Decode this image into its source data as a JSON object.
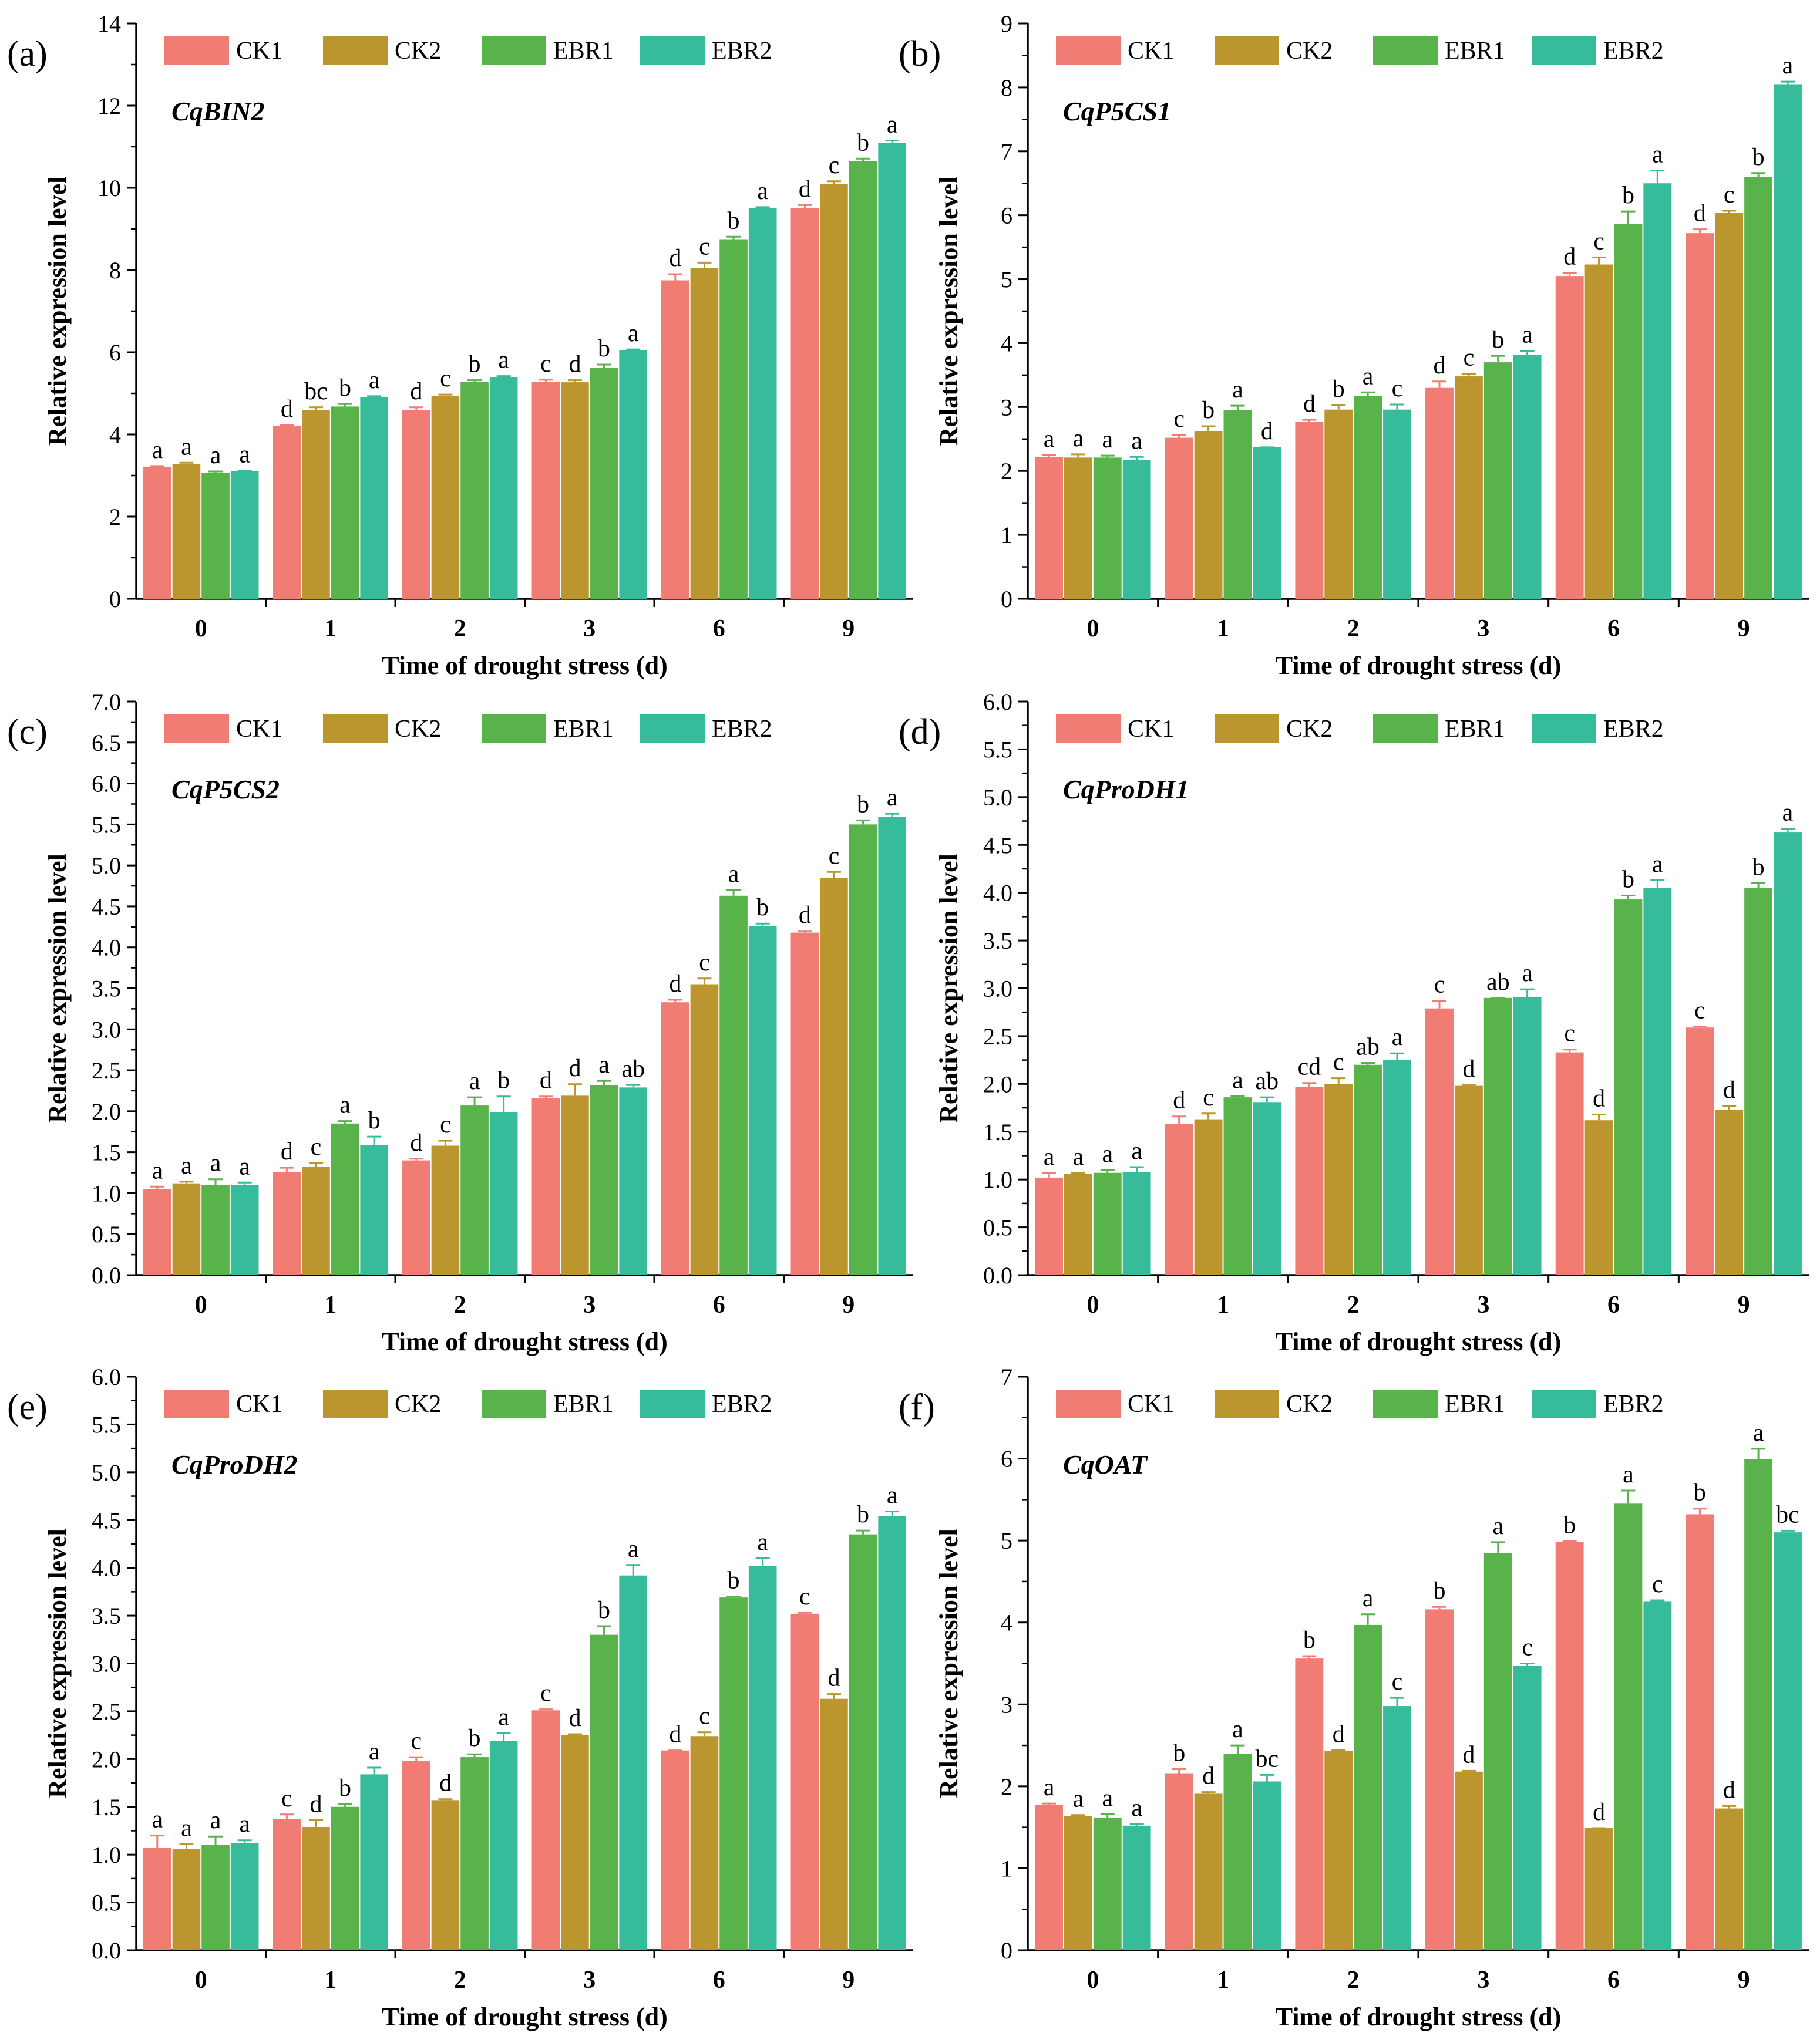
{
  "series_names": [
    "CK1",
    "CK2",
    "EBR1",
    "EBR2"
  ],
  "series_colors": [
    "#F07C74",
    "#BB962E",
    "#58B34A",
    "#36BB9B"
  ],
  "categories": [
    "0",
    "1",
    "2",
    "3",
    "6",
    "9"
  ],
  "xlabel": "Time of drought stress (d)",
  "ylabel": "Relative expression level",
  "chart_data": [
    {
      "type": "bar",
      "panel_label": "(a)",
      "gene": "CqBIN2",
      "ylim": [
        0,
        14
      ],
      "yticks": [
        "0",
        "2",
        "4",
        "6",
        "8",
        "10",
        "12",
        "14"
      ],
      "minor_step": 1,
      "series": [
        {
          "name": "CK1",
          "values": [
            3.2,
            4.2,
            4.6,
            5.28,
            7.75,
            9.5
          ],
          "errors": [
            0.03,
            0.03,
            0.06,
            0.05,
            0.15,
            0.08
          ],
          "letters": [
            "a",
            "d",
            "d",
            "c",
            "d",
            "d"
          ]
        },
        {
          "name": "CK2",
          "values": [
            3.28,
            4.6,
            4.93,
            5.27,
            8.05,
            10.1
          ],
          "errors": [
            0.03,
            0.06,
            0.04,
            0.05,
            0.13,
            0.06
          ],
          "letters": [
            "a",
            "bc",
            "c",
            "d",
            "c",
            "c"
          ]
        },
        {
          "name": "EBR1",
          "values": [
            3.07,
            4.68,
            5.28,
            5.62,
            8.75,
            10.65
          ],
          "errors": [
            0.03,
            0.06,
            0.04,
            0.08,
            0.06,
            0.06
          ],
          "letters": [
            "a",
            "b",
            "b",
            "b",
            "b",
            "b"
          ]
        },
        {
          "name": "EBR2",
          "values": [
            3.1,
            4.9,
            5.4,
            6.05,
            9.5,
            11.1
          ],
          "errors": [
            0.02,
            0.03,
            0.02,
            0.02,
            0.03,
            0.05
          ],
          "letters": [
            "a",
            "a",
            "a",
            "a",
            "a",
            "a"
          ]
        }
      ]
    },
    {
      "type": "bar",
      "panel_label": "(b)",
      "gene": "CqP5CS1",
      "ylim": [
        0,
        9
      ],
      "yticks": [
        "0",
        "1",
        "2",
        "3",
        "4",
        "5",
        "6",
        "7",
        "8",
        "9"
      ],
      "minor_step": 0.5,
      "series": [
        {
          "name": "CK1",
          "values": [
            2.22,
            2.52,
            2.77,
            3.3,
            5.05,
            5.72
          ],
          "errors": [
            0.03,
            0.04,
            0.03,
            0.1,
            0.05,
            0.06
          ],
          "letters": [
            "a",
            "c",
            "d",
            "d",
            "d",
            "d"
          ]
        },
        {
          "name": "CK2",
          "values": [
            2.21,
            2.62,
            2.96,
            3.48,
            5.23,
            6.04
          ],
          "errors": [
            0.05,
            0.08,
            0.07,
            0.04,
            0.11,
            0.03
          ],
          "letters": [
            "a",
            "b",
            "b",
            "c",
            "c",
            "c"
          ]
        },
        {
          "name": "EBR1",
          "values": [
            2.21,
            2.95,
            3.17,
            3.7,
            5.86,
            6.6
          ],
          "errors": [
            0.03,
            0.07,
            0.06,
            0.1,
            0.2,
            0.06
          ],
          "letters": [
            "a",
            "a",
            "a",
            "b",
            "b",
            "b"
          ]
        },
        {
          "name": "EBR2",
          "values": [
            2.17,
            2.37,
            2.96,
            3.82,
            6.5,
            8.05
          ],
          "errors": [
            0.05,
            0.0,
            0.08,
            0.06,
            0.2,
            0.04
          ],
          "letters": [
            "a",
            "d",
            "c",
            "a",
            "a",
            "a"
          ]
        }
      ]
    },
    {
      "type": "bar",
      "panel_label": "(c)",
      "gene": "CqP5CS2",
      "ylim": [
        0,
        7
      ],
      "yticks": [
        "0.0",
        "0.5",
        "1.0",
        "1.5",
        "2.0",
        "2.5",
        "3.0",
        "3.5",
        "4.0",
        "4.5",
        "5.0",
        "5.5",
        "6.0",
        "6.5",
        "7.0"
      ],
      "minor_step": 0.25,
      "series": [
        {
          "name": "CK1",
          "values": [
            1.05,
            1.26,
            1.4,
            2.16,
            3.33,
            4.18
          ],
          "errors": [
            0.03,
            0.05,
            0.02,
            0.02,
            0.03,
            0.02
          ],
          "letters": [
            "a",
            "d",
            "d",
            "d",
            "d",
            "d"
          ]
        },
        {
          "name": "CK2",
          "values": [
            1.12,
            1.32,
            1.58,
            2.19,
            3.55,
            4.85
          ],
          "errors": [
            0.02,
            0.05,
            0.06,
            0.14,
            0.07,
            0.07
          ],
          "letters": [
            "a",
            "c",
            "c",
            "d",
            "c",
            "c"
          ]
        },
        {
          "name": "EBR1",
          "values": [
            1.1,
            1.85,
            2.07,
            2.32,
            4.63,
            5.5
          ],
          "errors": [
            0.07,
            0.03,
            0.1,
            0.05,
            0.07,
            0.05
          ],
          "letters": [
            "a",
            "a",
            "a",
            "a",
            "a",
            "b"
          ]
        },
        {
          "name": "EBR2",
          "values": [
            1.1,
            1.59,
            1.99,
            2.29,
            4.26,
            5.59
          ],
          "errors": [
            0.03,
            0.1,
            0.19,
            0.03,
            0.03,
            0.04
          ],
          "letters": [
            "a",
            "b",
            "b",
            "ab",
            "b",
            "a"
          ]
        }
      ]
    },
    {
      "type": "bar",
      "panel_label": "(d)",
      "gene": "CqProDH1",
      "ylim": [
        0,
        6
      ],
      "yticks": [
        "0.0",
        "0.5",
        "1.0",
        "1.5",
        "2.0",
        "2.5",
        "3.0",
        "3.5",
        "4.0",
        "4.5",
        "5.0",
        "5.5",
        "6.0"
      ],
      "minor_step": 0.25,
      "series": [
        {
          "name": "CK1",
          "values": [
            1.02,
            1.58,
            1.97,
            2.79,
            2.33,
            2.59
          ],
          "errors": [
            0.05,
            0.08,
            0.04,
            0.08,
            0.03,
            0.01
          ],
          "letters": [
            "a",
            "d",
            "cd",
            "c",
            "c",
            "c"
          ]
        },
        {
          "name": "CK2",
          "values": [
            1.06,
            1.63,
            2.0,
            1.98,
            1.62,
            1.73
          ],
          "errors": [
            0.01,
            0.06,
            0.06,
            0.01,
            0.06,
            0.04
          ],
          "letters": [
            "a",
            "c",
            "c",
            "d",
            "d",
            "d"
          ]
        },
        {
          "name": "EBR1",
          "values": [
            1.07,
            1.86,
            2.2,
            2.9,
            3.93,
            4.05
          ],
          "errors": [
            0.03,
            0.01,
            0.02,
            0.0,
            0.04,
            0.05
          ],
          "letters": [
            "a",
            "a",
            "ab",
            "ab",
            "b",
            "b"
          ]
        },
        {
          "name": "EBR2",
          "values": [
            1.08,
            1.81,
            2.25,
            2.91,
            4.05,
            4.63
          ],
          "errors": [
            0.05,
            0.05,
            0.07,
            0.08,
            0.08,
            0.04
          ],
          "letters": [
            "a",
            "ab",
            "a",
            "a",
            "a",
            "a"
          ]
        }
      ]
    },
    {
      "type": "bar",
      "panel_label": "(e)",
      "gene": "CqProDH2",
      "ylim": [
        0,
        6
      ],
      "yticks": [
        "0.0",
        "0.5",
        "1.0",
        "1.5",
        "2.0",
        "2.5",
        "3.0",
        "3.5",
        "4.0",
        "4.5",
        "5.0",
        "5.5",
        "6.0"
      ],
      "minor_step": 0.25,
      "series": [
        {
          "name": "CK1",
          "values": [
            1.07,
            1.37,
            1.98,
            2.51,
            2.09,
            3.52
          ],
          "errors": [
            0.13,
            0.05,
            0.04,
            0.01,
            0.0,
            0.01
          ],
          "letters": [
            "a",
            "c",
            "c",
            "c",
            "d",
            "c"
          ]
        },
        {
          "name": "CK2",
          "values": [
            1.06,
            1.29,
            1.57,
            2.25,
            2.24,
            2.63
          ],
          "errors": [
            0.05,
            0.07,
            0.01,
            0.01,
            0.04,
            0.05
          ],
          "letters": [
            "a",
            "d",
            "d",
            "d",
            "c",
            "d"
          ]
        },
        {
          "name": "EBR1",
          "values": [
            1.1,
            1.5,
            2.02,
            3.3,
            3.69,
            4.35
          ],
          "errors": [
            0.09,
            0.03,
            0.03,
            0.09,
            0.01,
            0.04
          ],
          "letters": [
            "a",
            "b",
            "b",
            "b",
            "b",
            "b"
          ]
        },
        {
          "name": "EBR2",
          "values": [
            1.12,
            1.84,
            2.19,
            3.92,
            4.02,
            4.54
          ],
          "errors": [
            0.03,
            0.07,
            0.08,
            0.11,
            0.08,
            0.05
          ],
          "letters": [
            "a",
            "a",
            "a",
            "a",
            "a",
            "a"
          ]
        }
      ]
    },
    {
      "type": "bar",
      "panel_label": "(f)",
      "gene": "CqOAT",
      "ylim": [
        0,
        7
      ],
      "yticks": [
        "0",
        "1",
        "2",
        "3",
        "4",
        "5",
        "6",
        "7"
      ],
      "minor_step": 0.5,
      "series": [
        {
          "name": "CK1",
          "values": [
            1.77,
            2.16,
            3.56,
            4.16,
            4.98,
            5.32
          ],
          "errors": [
            0.02,
            0.05,
            0.03,
            0.03,
            0.01,
            0.07
          ],
          "letters": [
            "a",
            "b",
            "b",
            "b",
            "b",
            "b"
          ]
        },
        {
          "name": "CK2",
          "values": [
            1.64,
            1.91,
            2.43,
            2.18,
            1.49,
            1.73
          ],
          "errors": [
            0.01,
            0.02,
            0.01,
            0.01,
            0.0,
            0.03
          ],
          "letters": [
            "a",
            "d",
            "d",
            "d",
            "d",
            "d"
          ]
        },
        {
          "name": "EBR1",
          "values": [
            1.62,
            2.4,
            3.97,
            4.85,
            5.45,
            5.99
          ],
          "errors": [
            0.04,
            0.1,
            0.13,
            0.13,
            0.16,
            0.13
          ],
          "letters": [
            "a",
            "a",
            "a",
            "a",
            "a",
            "a"
          ]
        },
        {
          "name": "EBR2",
          "values": [
            1.52,
            2.06,
            2.98,
            3.47,
            4.26,
            5.1
          ],
          "errors": [
            0.02,
            0.08,
            0.1,
            0.03,
            0.01,
            0.02
          ],
          "letters": [
            "a",
            "bc",
            "c",
            "c",
            "c",
            "bc"
          ]
        }
      ]
    }
  ]
}
